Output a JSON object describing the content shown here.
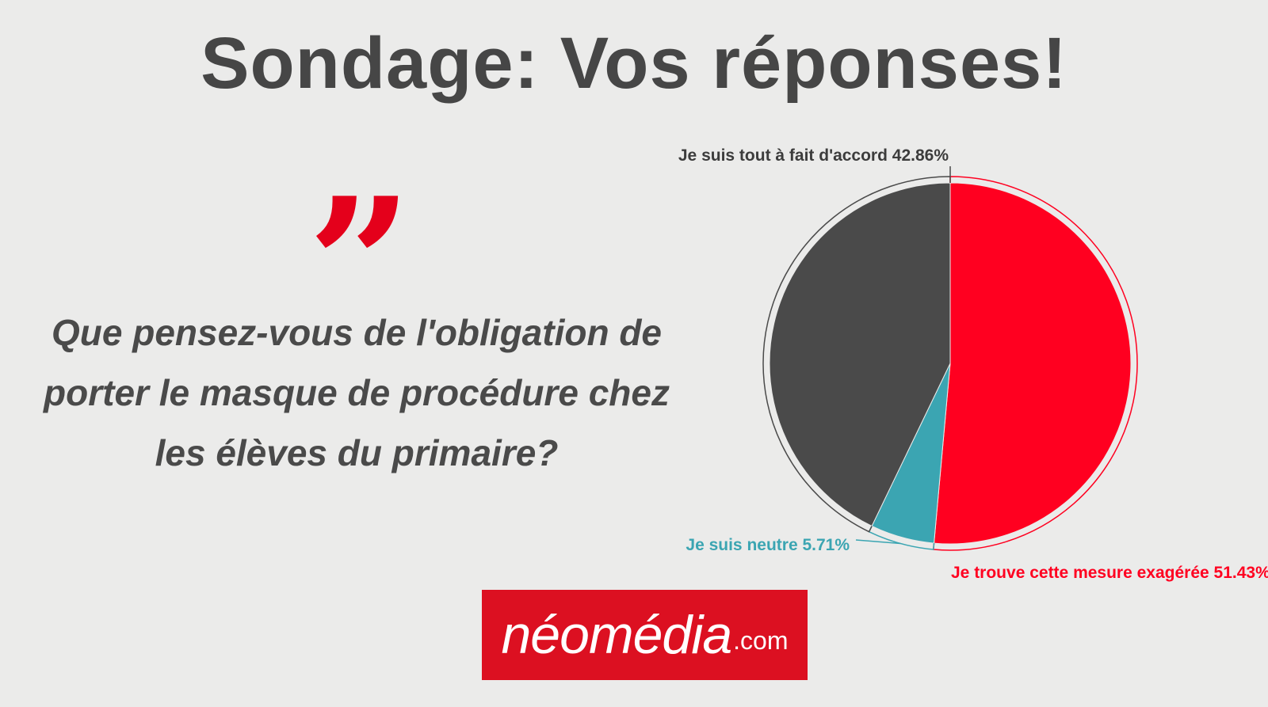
{
  "page": {
    "title": "Sondage: Vos réponses!",
    "quote_mark": "”",
    "question": "Que pensez-vous de l'obligation de porter le masque de procédure chez les élèves du primaire?"
  },
  "logo": {
    "name": "néomédia",
    "suffix": ".com",
    "color": "#dc1021"
  },
  "chart_data": {
    "type": "pie",
    "title": "",
    "slices": [
      {
        "label": "Je trouve cette mesure exagérée",
        "value": 51.43,
        "display": "Je trouve cette mesure exagérée 51.43%",
        "color": "#ff0020"
      },
      {
        "label": "Je suis neutre",
        "value": 5.71,
        "display": "Je suis neutre 5.71%",
        "color": "#3ba5b2"
      },
      {
        "label": "Je suis tout à fait d'accord",
        "value": 42.86,
        "display": "Je suis tout à fait d'accord 42.86%",
        "color": "#4a4a4a"
      }
    ]
  }
}
